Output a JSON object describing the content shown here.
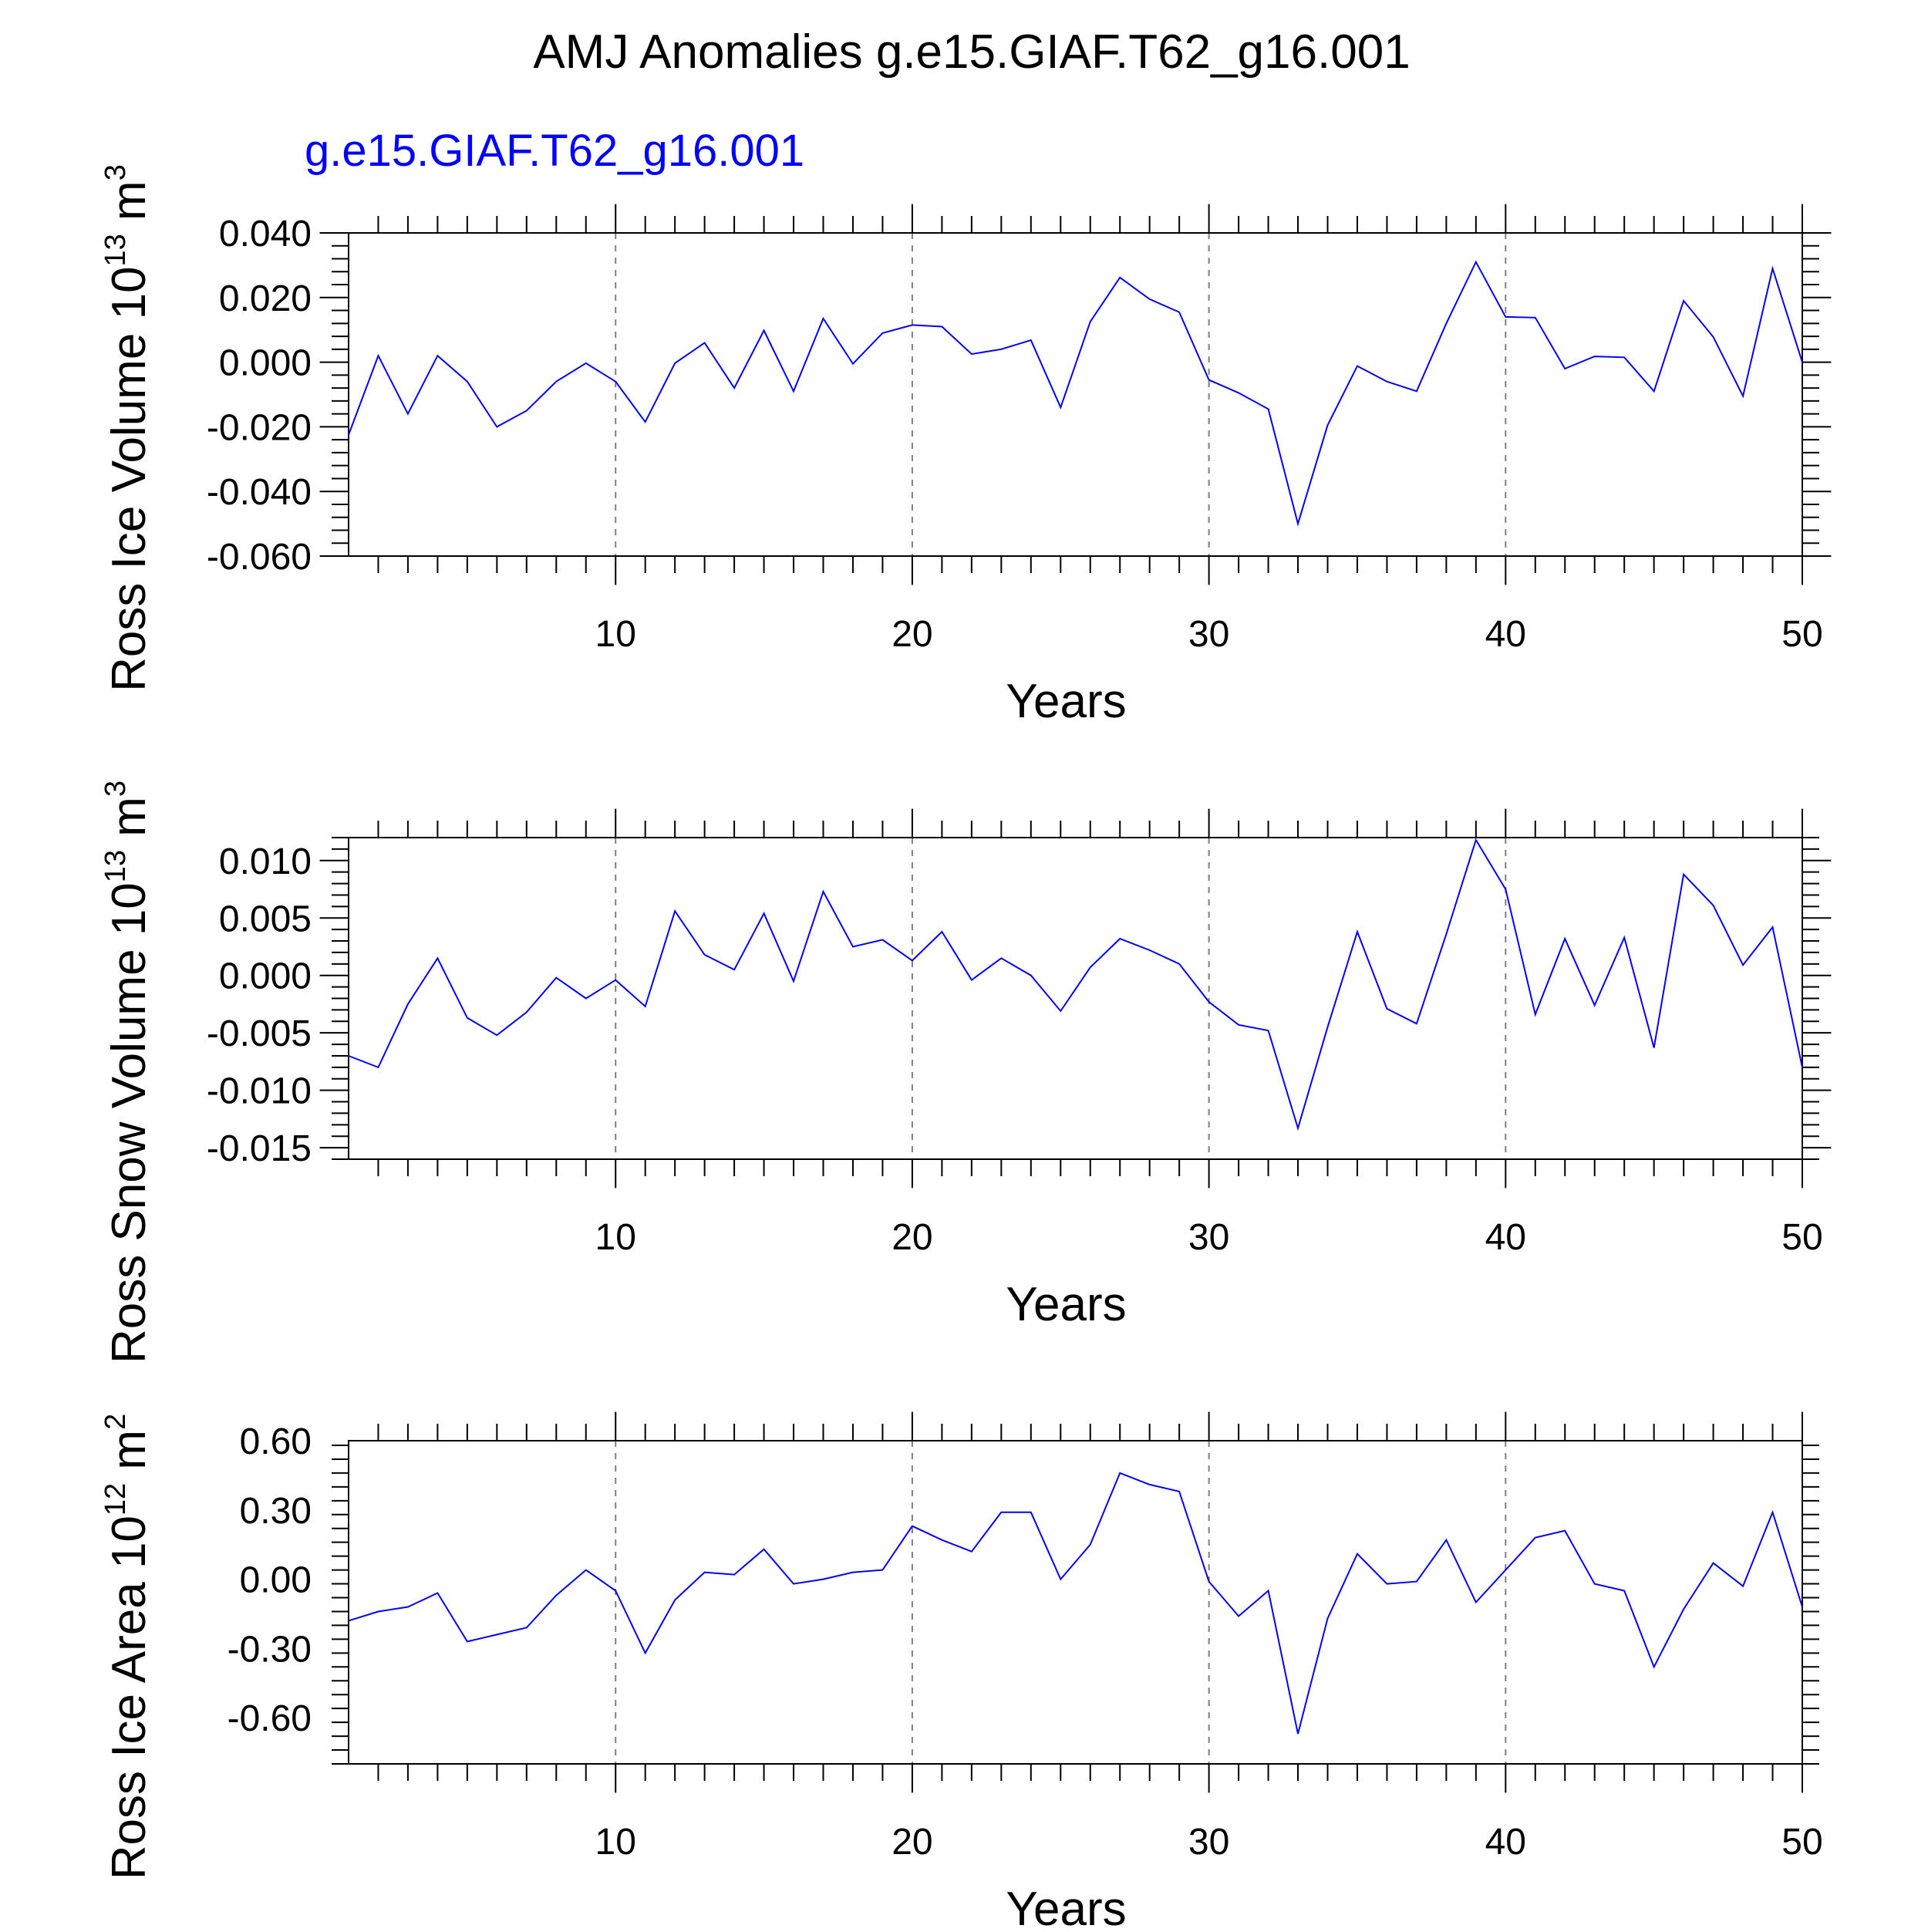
{
  "title": "AMJ Anomalies g.e15.GIAF.T62_g16.001",
  "subtitle": "g.e15.GIAF.T62_g16.001",
  "colors": {
    "series": "#0000ff",
    "axis": "#000000",
    "grid": "#808080",
    "subtitle": "#0000ff"
  },
  "chart_data": [
    {
      "type": "line",
      "xlabel": "Years",
      "ylabel_parts": [
        "Ross Ice Volume 10",
        "13",
        " m",
        "3"
      ],
      "xlim": [
        1,
        50
      ],
      "ylim": [
        -0.06,
        0.04
      ],
      "xticks": [
        10,
        20,
        30,
        40,
        50
      ],
      "yticks": [
        0.04,
        0.02,
        0.0,
        -0.02,
        -0.04,
        -0.06
      ],
      "ytick_labels": [
        "0.040",
        "0.020",
        "0.000",
        "-0.020",
        "-0.040",
        "-0.060"
      ],
      "x": [
        1,
        2,
        3,
        4,
        5,
        6,
        7,
        8,
        9,
        10,
        11,
        12,
        13,
        14,
        15,
        16,
        17,
        18,
        19,
        20,
        21,
        22,
        23,
        24,
        25,
        26,
        27,
        28,
        29,
        30,
        31,
        32,
        33,
        34,
        35,
        36,
        37,
        38,
        39,
        40,
        41,
        42,
        43,
        44,
        45,
        46,
        47,
        48,
        49,
        50
      ],
      "y": [
        -0.0225,
        0.002,
        -0.016,
        0.002,
        -0.006,
        -0.02,
        -0.015,
        -0.006,
        -0.0003,
        -0.006,
        -0.0185,
        -0.0003,
        0.006,
        -0.008,
        0.0098,
        -0.009,
        0.0135,
        -0.0005,
        0.009,
        0.0115,
        0.011,
        0.0025,
        0.004,
        0.0068,
        -0.014,
        0.0125,
        0.0262,
        0.0195,
        0.0155,
        -0.0055,
        -0.0095,
        -0.0145,
        -0.05,
        -0.0195,
        -0.0012,
        -0.006,
        -0.009,
        0.012,
        0.031,
        0.014,
        0.0138,
        -0.002,
        0.0018,
        0.0015,
        -0.009,
        0.019,
        0.0078,
        -0.0105,
        0.029,
        0.0
      ]
    },
    {
      "type": "line",
      "xlabel": "Years",
      "ylabel_parts": [
        "Ross Snow Volume 10",
        "13",
        " m",
        "3"
      ],
      "xlim": [
        1,
        50
      ],
      "ylim": [
        -0.016,
        0.012
      ],
      "xticks": [
        10,
        20,
        30,
        40,
        50
      ],
      "yticks": [
        0.01,
        0.005,
        0.0,
        -0.005,
        -0.01,
        -0.015
      ],
      "ytick_labels": [
        "0.010",
        "0.005",
        "0.000",
        "-0.005",
        "-0.010",
        "-0.015"
      ],
      "x": [
        1,
        2,
        3,
        4,
        5,
        6,
        7,
        8,
        9,
        10,
        11,
        12,
        13,
        14,
        15,
        16,
        17,
        18,
        19,
        20,
        21,
        22,
        23,
        24,
        25,
        26,
        27,
        28,
        29,
        30,
        31,
        32,
        33,
        34,
        35,
        36,
        37,
        38,
        39,
        40,
        41,
        42,
        43,
        44,
        45,
        46,
        47,
        48,
        49,
        50
      ],
      "y": [
        -0.007,
        -0.008,
        -0.0025,
        0.0015,
        -0.0037,
        -0.0052,
        -0.0032,
        -0.0002,
        -0.002,
        -0.0004,
        -0.0027,
        0.0056,
        0.0018,
        0.0005,
        0.0054,
        -0.0005,
        0.0073,
        0.0025,
        0.0031,
        0.0013,
        0.0038,
        -0.0004,
        0.0015,
        0.0,
        -0.0031,
        0.0007,
        0.0032,
        0.0022,
        0.001,
        -0.0023,
        -0.0043,
        -0.0048,
        -0.0133,
        -0.0045,
        0.0038,
        -0.0029,
        -0.0042,
        0.0036,
        0.0118,
        0.0075,
        -0.0034,
        0.0032,
        -0.0026,
        0.0033,
        -0.0063,
        0.0088,
        0.0061,
        0.0009,
        0.0042,
        -0.008
      ]
    },
    {
      "type": "line",
      "xlabel": "Years",
      "ylabel_parts": [
        "Ross Ice Area 10",
        "12",
        " m",
        "2"
      ],
      "xlim": [
        1,
        50
      ],
      "ylim": [
        -0.8,
        0.6
      ],
      "xticks": [
        10,
        20,
        30,
        40,
        50
      ],
      "yticks": [
        0.6,
        0.3,
        0.0,
        -0.3,
        -0.6
      ],
      "ytick_labels": [
        "0.60",
        "0.30",
        "0.00",
        "-0.30",
        "-0.60"
      ],
      "x": [
        1,
        2,
        3,
        4,
        5,
        6,
        7,
        8,
        9,
        10,
        11,
        12,
        13,
        14,
        15,
        16,
        17,
        18,
        19,
        20,
        21,
        22,
        23,
        24,
        25,
        26,
        27,
        28,
        29,
        30,
        31,
        32,
        33,
        34,
        35,
        36,
        37,
        38,
        39,
        40,
        41,
        42,
        43,
        44,
        45,
        46,
        47,
        48,
        49,
        50
      ],
      "y": [
        -0.18,
        -0.14,
        -0.12,
        -0.06,
        -0.27,
        -0.24,
        -0.21,
        -0.07,
        0.04,
        -0.05,
        -0.32,
        -0.09,
        0.03,
        0.02,
        0.13,
        -0.02,
        0.0,
        0.03,
        0.04,
        0.23,
        0.17,
        0.12,
        0.29,
        0.29,
        0.0,
        0.15,
        0.46,
        0.41,
        0.38,
        -0.01,
        -0.16,
        -0.05,
        -0.67,
        -0.17,
        0.11,
        -0.02,
        -0.01,
        0.17,
        -0.1,
        0.04,
        0.18,
        0.21,
        -0.02,
        -0.05,
        -0.38,
        -0.13,
        0.07,
        -0.03,
        0.29,
        -0.12
      ]
    }
  ]
}
